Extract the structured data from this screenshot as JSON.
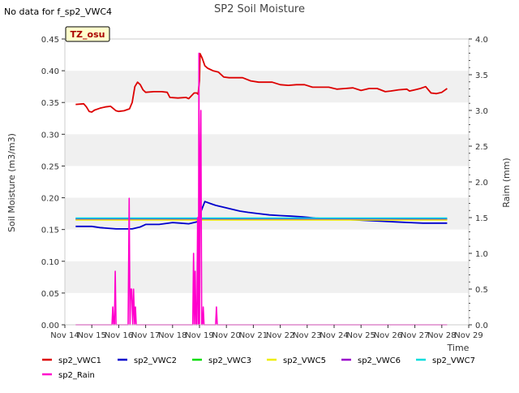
{
  "chart_data": {
    "type": "line",
    "title": "SP2 Soil Moisture",
    "note": "No data for f_sp2_VWC4",
    "badge": "TZ_osu",
    "xlabel": "Time",
    "ylabel": "Soil Moisture (m3/m3)",
    "y2label": "Raim (mm)",
    "xlim": [
      14,
      29
    ],
    "ylim": [
      0,
      0.45
    ],
    "y2lim": [
      0,
      4.0
    ],
    "grid_bands": true,
    "legend_placement": "bottom",
    "x_ticks": [
      14,
      15,
      16,
      17,
      18,
      19,
      20,
      21,
      22,
      23,
      24,
      25,
      26,
      27,
      28,
      29
    ],
    "x_tick_labels": [
      "Nov 14",
      "Nov 15",
      "Nov 16",
      "Nov 17",
      "Nov 18",
      "Nov 19",
      "Nov 20",
      "Nov 21",
      "Nov 22",
      "Nov 23",
      "Nov 24",
      "Nov 25",
      "Nov 26",
      "Nov 27",
      "Nov 28",
      "Nov 29"
    ],
    "y_ticks": [
      0.0,
      0.05,
      0.1,
      0.15,
      0.2,
      0.25,
      0.3,
      0.35,
      0.4,
      0.45
    ],
    "y_tick_labels": [
      "0.00",
      "0.05",
      "0.10",
      "0.15",
      "0.20",
      "0.25",
      "0.30",
      "0.35",
      "0.40",
      "0.45"
    ],
    "y2_ticks": [
      0.0,
      0.5,
      1.0,
      1.5,
      2.0,
      2.5,
      3.0,
      3.5,
      4.0
    ],
    "y2_tick_labels": [
      "0.0",
      "0.5",
      "1.0",
      "1.5",
      "2.0",
      "2.5",
      "3.0",
      "3.5",
      "4.0"
    ],
    "series": [
      {
        "name": "sp2_VWC1",
        "color": "#dd0000",
        "axis": "left",
        "x": [
          14.4,
          14.7,
          14.8,
          14.9,
          15.0,
          15.1,
          15.3,
          15.5,
          15.7,
          15.9,
          16.0,
          16.2,
          16.4,
          16.5,
          16.6,
          16.7,
          16.8,
          16.9,
          17.0,
          17.3,
          17.6,
          17.8,
          17.9,
          18.2,
          18.5,
          18.6,
          18.8,
          18.9,
          18.95,
          19.0,
          19.02,
          19.1,
          19.2,
          19.3,
          19.5,
          19.7,
          19.9,
          20.1,
          20.4,
          20.6,
          20.9,
          21.2,
          21.5,
          21.7,
          22.0,
          22.3,
          22.6,
          22.9,
          23.2,
          23.5,
          23.8,
          24.1,
          24.4,
          24.7,
          25.0,
          25.3,
          25.6,
          25.9,
          26.1,
          26.4,
          26.7,
          26.8,
          27.0,
          27.2,
          27.4,
          27.6,
          27.8,
          28.0,
          28.2
        ],
        "y": [
          0.347,
          0.348,
          0.343,
          0.336,
          0.335,
          0.338,
          0.341,
          0.343,
          0.344,
          0.337,
          0.336,
          0.337,
          0.34,
          0.35,
          0.375,
          0.382,
          0.378,
          0.37,
          0.366,
          0.367,
          0.367,
          0.366,
          0.358,
          0.357,
          0.358,
          0.356,
          0.365,
          0.365,
          0.363,
          0.385,
          0.427,
          0.42,
          0.408,
          0.404,
          0.4,
          0.398,
          0.39,
          0.389,
          0.389,
          0.389,
          0.384,
          0.382,
          0.382,
          0.382,
          0.378,
          0.377,
          0.378,
          0.378,
          0.374,
          0.374,
          0.374,
          0.371,
          0.372,
          0.373,
          0.369,
          0.372,
          0.372,
          0.367,
          0.368,
          0.37,
          0.371,
          0.368,
          0.37,
          0.372,
          0.375,
          0.365,
          0.364,
          0.366,
          0.372
        ]
      },
      {
        "name": "sp2_VWC2",
        "color": "#0000cc",
        "axis": "left",
        "x": [
          14.4,
          15.0,
          15.3,
          15.6,
          15.9,
          16.2,
          16.5,
          16.8,
          17.0,
          17.5,
          18.0,
          18.3,
          18.6,
          18.9,
          19.0,
          19.05,
          19.2,
          19.4,
          19.6,
          19.9,
          20.2,
          20.5,
          20.8,
          21.2,
          21.6,
          22.0,
          22.4,
          22.8,
          23.3,
          23.8,
          24.3,
          24.8,
          25.3,
          25.8,
          26.3,
          26.8,
          27.3,
          27.8,
          28.2
        ],
        "y": [
          0.155,
          0.155,
          0.153,
          0.152,
          0.151,
          0.151,
          0.151,
          0.154,
          0.158,
          0.158,
          0.161,
          0.16,
          0.159,
          0.162,
          0.163,
          0.178,
          0.194,
          0.191,
          0.188,
          0.185,
          0.182,
          0.179,
          0.177,
          0.175,
          0.173,
          0.172,
          0.171,
          0.17,
          0.168,
          0.167,
          0.166,
          0.165,
          0.164,
          0.163,
          0.162,
          0.161,
          0.16,
          0.16,
          0.16
        ]
      },
      {
        "name": "sp2_VWC3",
        "color": "#00dd00",
        "axis": "left",
        "x": [
          14.4,
          16.0,
          18.0,
          19.0,
          20.0,
          22.0,
          24.0,
          26.0,
          28.2
        ],
        "y": [
          0.166,
          0.166,
          0.166,
          0.166,
          0.166,
          0.166,
          0.166,
          0.166,
          0.166
        ]
      },
      {
        "name": "sp2_VWC5",
        "color": "#eeee00",
        "axis": "left",
        "x": [
          14.4,
          16.0,
          18.0,
          19.0,
          20.0,
          22.0,
          24.0,
          26.0,
          28.2
        ],
        "y": [
          0.165,
          0.165,
          0.165,
          0.165,
          0.165,
          0.165,
          0.165,
          0.165,
          0.165
        ]
      },
      {
        "name": "sp2_VWC6",
        "color": "#9900cc",
        "axis": "left",
        "x": [
          14.4,
          28.2
        ],
        "y": [
          0.167,
          0.167
        ]
      },
      {
        "name": "sp2_VWC7",
        "color": "#00dddd",
        "axis": "left",
        "x": [
          14.4,
          16.0,
          18.0,
          20.0,
          22.0,
          24.0,
          26.0,
          28.2
        ],
        "y": [
          0.168,
          0.168,
          0.168,
          0.168,
          0.168,
          0.168,
          0.168,
          0.168
        ]
      },
      {
        "name": "sp2_Rain",
        "color": "#ff00cc",
        "axis": "right",
        "x": [
          14.4,
          15.75,
          15.78,
          15.81,
          15.84,
          15.87,
          15.9,
          15.93,
          16.35,
          16.39,
          16.42,
          16.45,
          16.48,
          16.52,
          16.55,
          16.59,
          16.62,
          16.65,
          16.68,
          18.75,
          18.78,
          18.81,
          18.84,
          18.87,
          18.9,
          18.93,
          18.96,
          18.98,
          19.0,
          19.02,
          19.05,
          19.08,
          19.11,
          19.14,
          19.17,
          19.2,
          19.23,
          19.26,
          19.6,
          19.63,
          19.66,
          19.69,
          28.2
        ],
        "y": [
          0,
          0,
          0.25,
          0,
          0,
          0.75,
          0,
          0,
          0,
          1.77,
          0,
          0.5,
          0.5,
          0,
          0.5,
          0,
          0.25,
          0,
          0,
          0,
          1.0,
          0,
          0.75,
          0,
          0,
          1.5,
          0,
          3.8,
          0,
          2.0,
          3.0,
          0,
          0,
          0.25,
          0,
          0,
          0,
          0,
          0,
          0.25,
          0,
          0,
          0
        ]
      }
    ]
  }
}
